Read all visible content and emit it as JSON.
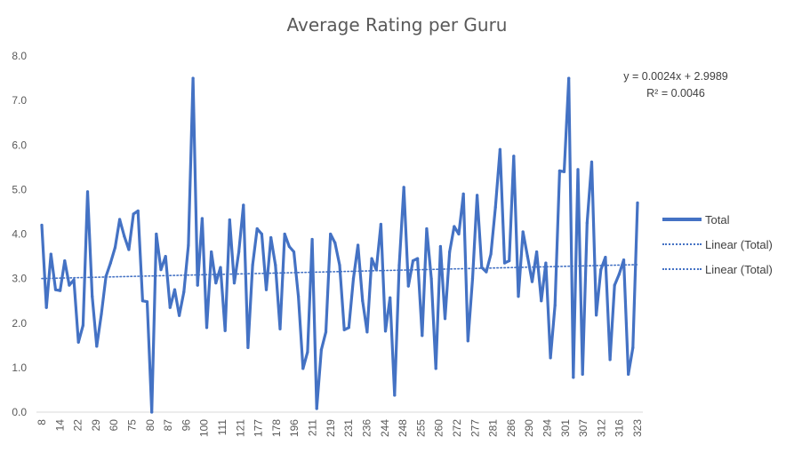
{
  "chart_data": {
    "type": "line",
    "title": "Average Rating per Guru",
    "xlabel": "",
    "ylabel": "",
    "ylim": [
      0,
      8
    ],
    "yticks": [
      "0.0",
      "1.0",
      "2.0",
      "3.0",
      "4.0",
      "5.0",
      "6.0",
      "7.0",
      "8.0"
    ],
    "x_tick_labels": [
      "8",
      "14",
      "22",
      "29",
      "60",
      "75",
      "80",
      "87",
      "96",
      "100",
      "111",
      "121",
      "177",
      "178",
      "196",
      "211",
      "219",
      "231",
      "236",
      "244",
      "248",
      "255",
      "260",
      "272",
      "277",
      "281",
      "286",
      "290",
      "294",
      "301",
      "307",
      "312",
      "316",
      "323"
    ],
    "grid": false,
    "legend_position": "right",
    "series": [
      {
        "name": "Total",
        "color": "#4472C4",
        "values": [
          4.2,
          2.35,
          3.55,
          2.75,
          2.73,
          3.4,
          2.85,
          2.97,
          1.57,
          1.95,
          4.95,
          2.6,
          1.48,
          2.2,
          3.05,
          3.35,
          3.7,
          4.33,
          3.95,
          3.65,
          4.45,
          4.52,
          2.5,
          2.48,
          0.0,
          4.0,
          3.2,
          3.5,
          2.35,
          2.75,
          2.17,
          2.7,
          3.75,
          7.5,
          2.85,
          4.35,
          1.9,
          3.6,
          2.9,
          3.25,
          1.83,
          4.32,
          2.9,
          3.6,
          4.65,
          1.45,
          3.3,
          4.12,
          4.0,
          2.75,
          3.92,
          3.3,
          1.87,
          4.0,
          3.72,
          3.6,
          2.6,
          0.98,
          1.35,
          3.88,
          0.08,
          1.4,
          1.8,
          4.0,
          3.8,
          3.3,
          1.85,
          1.9,
          3.0,
          3.75,
          2.5,
          1.8,
          3.45,
          3.2,
          4.22,
          1.82,
          2.57,
          0.38,
          3.3,
          5.05,
          2.83,
          3.4,
          3.45,
          1.72,
          4.12,
          3.0,
          0.98,
          3.72,
          2.1,
          3.6,
          4.17,
          4.0,
          4.9,
          1.6,
          3.0,
          4.87,
          3.25,
          3.15,
          3.55,
          4.6,
          5.9,
          3.35,
          3.4,
          5.75,
          2.6,
          4.05,
          3.5,
          2.93,
          3.6,
          2.5,
          3.35,
          1.22,
          2.4,
          5.42,
          5.4,
          7.5,
          0.78,
          5.45,
          0.85,
          4.25,
          5.62,
          2.18,
          3.2,
          3.48,
          1.18,
          2.85,
          3.1,
          3.42,
          0.85,
          1.45,
          4.7
        ]
      }
    ],
    "trendlines": [
      {
        "name": "Linear (Total)",
        "color": "#4472C4",
        "style": "dotted"
      },
      {
        "name": "Linear (Total)",
        "color": "#4472C4",
        "style": "dotted"
      }
    ],
    "trendline_fit": {
      "slope": 0.0024,
      "intercept": 2.9989
    },
    "annotations": {
      "equation": "y = 0.0024x + 2.9989",
      "r_squared": "R² = 0.0046"
    },
    "colors": {
      "axis": "#D9D9D9",
      "tick_text": "#595959"
    }
  }
}
